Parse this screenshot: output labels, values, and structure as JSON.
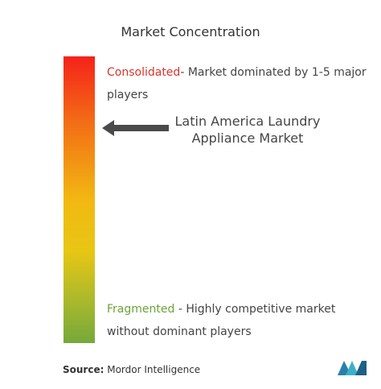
{
  "title": "Market Concentration",
  "consolidated": {
    "label": "Consolidated",
    "text": "- Market dominated by 1-5 major players"
  },
  "market": "Latin America Laundry Appliance Market",
  "fragmented": {
    "label": "Fragmented",
    "text": " - Highly competitive market without dominant players"
  },
  "source": {
    "label": "Source:",
    "text": "Mordor Intelligence"
  }
}
